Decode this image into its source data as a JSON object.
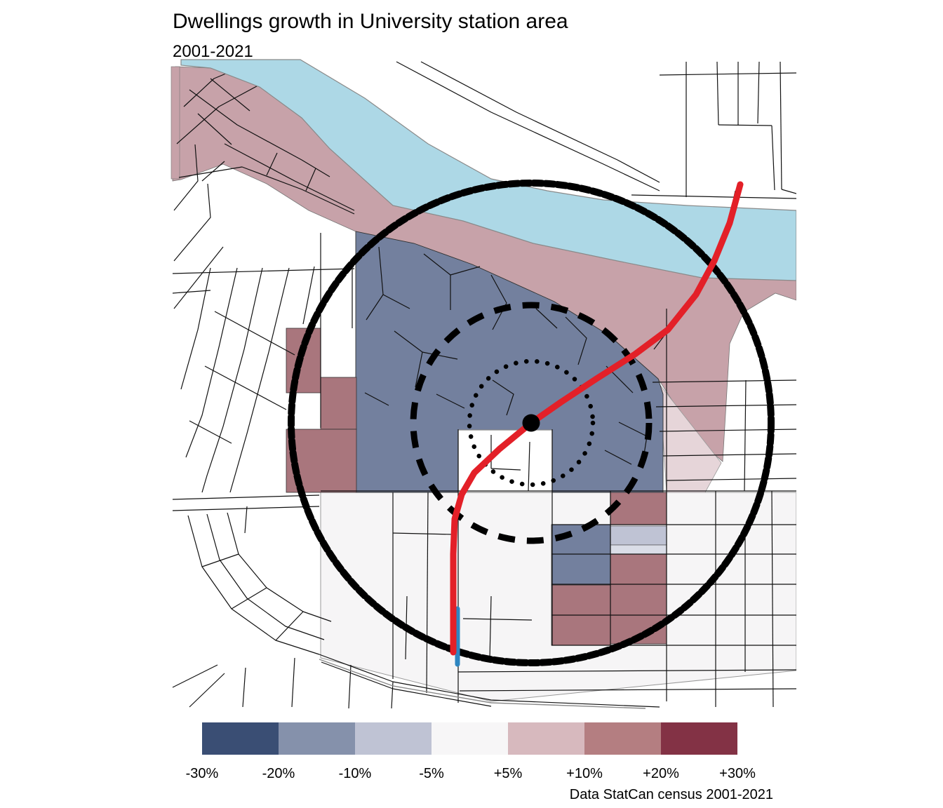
{
  "header": {
    "title": "Dwellings growth in University station area",
    "subtitle": "2001-2021"
  },
  "caption": "Data StatCan census 2001-2021",
  "legend": {
    "labels": [
      "-30%",
      "-20%",
      "-10%",
      "-5%",
      "+5%",
      "+10%",
      "+20%",
      "+30%"
    ],
    "colors": [
      "#3A4E74",
      "#8591AB",
      "#BFC3D4",
      "#F7F6F7",
      "#D7B9BE",
      "#B47E81",
      "#833245"
    ]
  },
  "map": {
    "colors": {
      "river": "#ADD8E6",
      "rose_band": "#C7A2A9",
      "rose_block": "#A9767D",
      "blue_area": "#73809E",
      "lavender": "#BFC3D4",
      "lavender_light": "#DADDE7",
      "pink_light": "#E6D5D9",
      "near_white": "#F6F5F6",
      "transit": "#E32028",
      "secondary": "#2E86C1",
      "rings": "#000000"
    },
    "features": {
      "station_marker": "University station",
      "rings": [
        "inner dotted ring",
        "middle dashed ring",
        "outer bold ring"
      ],
      "transit_line": "rail line",
      "river": "river"
    }
  }
}
